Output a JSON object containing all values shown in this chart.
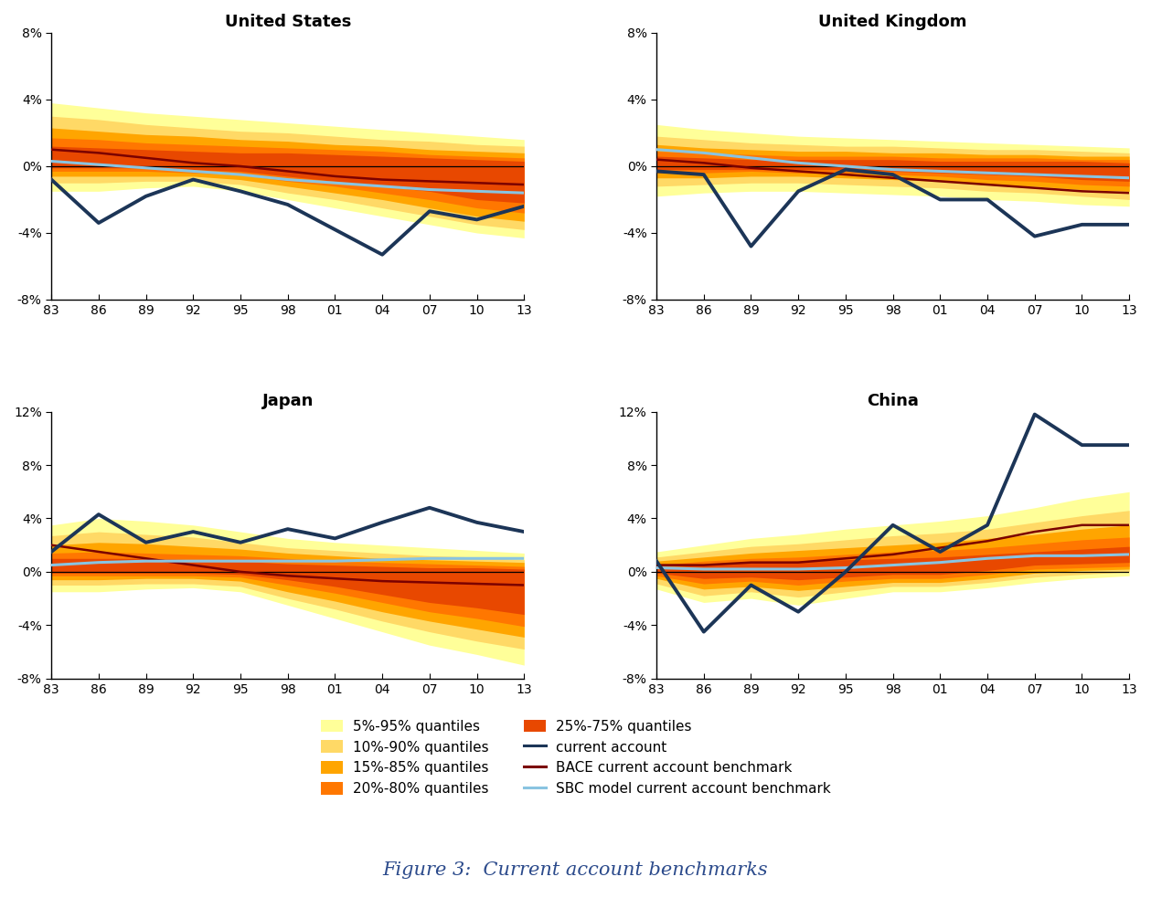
{
  "years": [
    1983,
    1986,
    1989,
    1992,
    1995,
    1998,
    2001,
    2004,
    2007,
    2010,
    2013
  ],
  "year_labels": [
    "83",
    "86",
    "89",
    "92",
    "95",
    "98",
    "01",
    "04",
    "07",
    "10",
    "13"
  ],
  "panels": {
    "United States": {
      "ylim": [
        -8,
        8
      ],
      "yticks": [
        -8,
        -4,
        0,
        4,
        8
      ],
      "ytick_labels": [
        "-8%",
        "-4%",
        "0%",
        "4%",
        "8%"
      ],
      "current_account": [
        -0.8,
        -3.4,
        -1.8,
        -0.8,
        -1.5,
        -2.3,
        -3.8,
        -5.3,
        -2.7,
        -3.2,
        -2.4
      ],
      "bace_benchmark": [
        1.0,
        0.8,
        0.5,
        0.2,
        0.0,
        -0.3,
        -0.6,
        -0.8,
        -0.9,
        -1.0,
        -1.1
      ],
      "sbc_benchmark": [
        0.3,
        0.1,
        -0.1,
        -0.3,
        -0.5,
        -0.8,
        -1.0,
        -1.2,
        -1.4,
        -1.5,
        -1.6
      ],
      "q5_95_upper": [
        3.8,
        3.5,
        3.2,
        3.0,
        2.8,
        2.6,
        2.4,
        2.2,
        2.0,
        1.8,
        1.6
      ],
      "q5_95_lower": [
        -1.5,
        -1.5,
        -1.3,
        -1.2,
        -1.5,
        -2.0,
        -2.5,
        -3.0,
        -3.5,
        -4.0,
        -4.3
      ],
      "q10_90_upper": [
        3.0,
        2.8,
        2.5,
        2.3,
        2.1,
        2.0,
        1.8,
        1.6,
        1.5,
        1.3,
        1.2
      ],
      "q10_90_lower": [
        -1.0,
        -1.0,
        -0.9,
        -0.9,
        -1.1,
        -1.6,
        -2.0,
        -2.5,
        -3.0,
        -3.5,
        -3.8
      ],
      "q15_85_upper": [
        2.3,
        2.1,
        1.9,
        1.8,
        1.6,
        1.5,
        1.3,
        1.2,
        1.0,
        0.9,
        0.8
      ],
      "q15_85_lower": [
        -0.6,
        -0.6,
        -0.6,
        -0.6,
        -0.8,
        -1.2,
        -1.6,
        -2.0,
        -2.5,
        -3.0,
        -3.3
      ],
      "q20_80_upper": [
        1.7,
        1.6,
        1.4,
        1.3,
        1.2,
        1.1,
        1.0,
        0.9,
        0.7,
        0.6,
        0.5
      ],
      "q20_80_lower": [
        -0.3,
        -0.3,
        -0.3,
        -0.4,
        -0.5,
        -0.9,
        -1.2,
        -1.6,
        -2.0,
        -2.5,
        -2.8
      ],
      "q25_75_upper": [
        1.2,
        1.1,
        1.0,
        0.9,
        0.8,
        0.8,
        0.7,
        0.6,
        0.5,
        0.4,
        0.3
      ],
      "q25_75_lower": [
        -0.1,
        -0.1,
        -0.1,
        -0.2,
        -0.3,
        -0.6,
        -0.9,
        -1.2,
        -1.5,
        -2.0,
        -2.2
      ]
    },
    "United Kingdom": {
      "ylim": [
        -8,
        8
      ],
      "yticks": [
        -8,
        -4,
        0,
        4,
        8
      ],
      "ytick_labels": [
        "-8%",
        "-4%",
        "0%",
        "4%",
        "8%"
      ],
      "current_account": [
        -0.3,
        -0.5,
        -4.8,
        -1.5,
        -0.2,
        -0.5,
        -2.0,
        -2.0,
        -4.2,
        -3.5,
        -3.5
      ],
      "bace_benchmark": [
        0.4,
        0.2,
        -0.1,
        -0.3,
        -0.5,
        -0.7,
        -0.9,
        -1.1,
        -1.3,
        -1.5,
        -1.6
      ],
      "sbc_benchmark": [
        1.0,
        0.8,
        0.5,
        0.2,
        0.0,
        -0.2,
        -0.3,
        -0.4,
        -0.5,
        -0.6,
        -0.7
      ],
      "q5_95_upper": [
        2.5,
        2.2,
        2.0,
        1.8,
        1.7,
        1.6,
        1.5,
        1.4,
        1.3,
        1.2,
        1.1
      ],
      "q5_95_lower": [
        -1.8,
        -1.6,
        -1.5,
        -1.5,
        -1.6,
        -1.7,
        -1.8,
        -2.0,
        -2.1,
        -2.3,
        -2.4
      ],
      "q10_90_upper": [
        1.8,
        1.6,
        1.4,
        1.3,
        1.2,
        1.2,
        1.1,
        1.0,
        1.0,
        0.9,
        0.8
      ],
      "q10_90_lower": [
        -1.2,
        -1.1,
        -1.0,
        -1.0,
        -1.1,
        -1.2,
        -1.3,
        -1.5,
        -1.6,
        -1.8,
        -2.0
      ],
      "q15_85_upper": [
        1.3,
        1.1,
        1.0,
        0.9,
        0.9,
        0.8,
        0.8,
        0.7,
        0.7,
        0.6,
        0.6
      ],
      "q15_85_lower": [
        -0.7,
        -0.7,
        -0.6,
        -0.6,
        -0.7,
        -0.8,
        -0.9,
        -1.1,
        -1.2,
        -1.4,
        -1.5
      ],
      "q20_80_upper": [
        0.9,
        0.8,
        0.7,
        0.6,
        0.6,
        0.6,
        0.5,
        0.5,
        0.5,
        0.4,
        0.4
      ],
      "q20_80_lower": [
        -0.4,
        -0.4,
        -0.3,
        -0.4,
        -0.4,
        -0.5,
        -0.6,
        -0.8,
        -0.9,
        -1.1,
        -1.2
      ],
      "q25_75_upper": [
        0.6,
        0.5,
        0.4,
        0.4,
        0.4,
        0.4,
        0.3,
        0.3,
        0.3,
        0.3,
        0.2
      ],
      "q25_75_lower": [
        -0.2,
        -0.2,
        -0.2,
        -0.2,
        -0.2,
        -0.3,
        -0.4,
        -0.5,
        -0.6,
        -0.8,
        -0.9
      ]
    },
    "Japan": {
      "ylim": [
        -8,
        12
      ],
      "yticks": [
        -8,
        -4,
        0,
        4,
        8,
        12
      ],
      "ytick_labels": [
        "-8%",
        "-4%",
        "0%",
        "4%",
        "8%",
        "12%"
      ],
      "current_account": [
        1.5,
        4.3,
        2.2,
        3.0,
        2.2,
        3.2,
        2.5,
        3.7,
        4.8,
        3.7,
        3.0
      ],
      "bace_benchmark": [
        2.0,
        1.5,
        1.0,
        0.5,
        0.0,
        -0.3,
        -0.5,
        -0.7,
        -0.8,
        -0.9,
        -1.0
      ],
      "sbc_benchmark": [
        0.5,
        0.7,
        0.8,
        0.8,
        0.8,
        0.8,
        0.8,
        0.9,
        1.0,
        1.0,
        1.0
      ],
      "q5_95_upper": [
        3.5,
        4.0,
        3.8,
        3.5,
        3.0,
        2.5,
        2.2,
        2.0,
        1.8,
        1.6,
        1.4
      ],
      "q5_95_lower": [
        -1.5,
        -1.5,
        -1.3,
        -1.2,
        -1.5,
        -2.5,
        -3.5,
        -4.5,
        -5.5,
        -6.2,
        -7.0
      ],
      "q10_90_upper": [
        2.7,
        3.0,
        2.8,
        2.6,
        2.2,
        1.8,
        1.6,
        1.4,
        1.2,
        1.1,
        0.9
      ],
      "q10_90_lower": [
        -1.0,
        -1.0,
        -0.9,
        -0.9,
        -1.1,
        -2.0,
        -2.8,
        -3.7,
        -4.5,
        -5.2,
        -5.8
      ],
      "q15_85_upper": [
        2.0,
        2.2,
        2.1,
        1.9,
        1.7,
        1.4,
        1.2,
        1.0,
        0.9,
        0.8,
        0.7
      ],
      "q15_85_lower": [
        -0.6,
        -0.6,
        -0.5,
        -0.5,
        -0.7,
        -1.5,
        -2.2,
        -3.0,
        -3.7,
        -4.3,
        -4.9
      ],
      "q20_80_upper": [
        1.4,
        1.5,
        1.4,
        1.3,
        1.2,
        1.0,
        0.8,
        0.7,
        0.6,
        0.5,
        0.4
      ],
      "q20_80_lower": [
        -0.3,
        -0.3,
        -0.3,
        -0.3,
        -0.4,
        -1.0,
        -1.6,
        -2.3,
        -3.0,
        -3.5,
        -4.1
      ],
      "q25_75_upper": [
        1.0,
        1.0,
        1.0,
        0.9,
        0.8,
        0.6,
        0.5,
        0.4,
        0.3,
        0.3,
        0.2
      ],
      "q25_75_lower": [
        -0.1,
        -0.1,
        -0.1,
        -0.1,
        -0.2,
        -0.6,
        -1.1,
        -1.7,
        -2.3,
        -2.7,
        -3.2
      ]
    },
    "China": {
      "ylim": [
        -8,
        12
      ],
      "yticks": [
        -8,
        -4,
        0,
        4,
        8,
        12
      ],
      "ytick_labels": [
        "-8%",
        "-4%",
        "0%",
        "4%",
        "8%",
        "12%"
      ],
      "current_account": [
        0.8,
        -4.5,
        -1.0,
        -3.0,
        0.0,
        3.5,
        1.5,
        3.5,
        11.8,
        9.5,
        9.5
      ],
      "bace_benchmark": [
        0.5,
        0.5,
        0.7,
        0.7,
        1.0,
        1.3,
        1.8,
        2.3,
        3.0,
        3.5,
        3.5
      ],
      "sbc_benchmark": [
        0.3,
        0.2,
        0.2,
        0.2,
        0.3,
        0.5,
        0.7,
        1.0,
        1.2,
        1.2,
        1.3
      ],
      "q5_95_upper": [
        1.5,
        2.0,
        2.5,
        2.8,
        3.2,
        3.5,
        3.8,
        4.2,
        4.8,
        5.5,
        6.0
      ],
      "q5_95_lower": [
        -1.3,
        -2.3,
        -2.0,
        -2.5,
        -2.0,
        -1.5,
        -1.5,
        -1.2,
        -0.8,
        -0.5,
        -0.3
      ],
      "q10_90_upper": [
        1.1,
        1.5,
        1.9,
        2.1,
        2.4,
        2.7,
        2.9,
        3.2,
        3.7,
        4.2,
        4.6
      ],
      "q10_90_lower": [
        -0.9,
        -1.8,
        -1.5,
        -1.9,
        -1.5,
        -1.1,
        -1.1,
        -0.8,
        -0.4,
        -0.2,
        0.0
      ],
      "q15_85_upper": [
        0.8,
        1.1,
        1.4,
        1.6,
        1.8,
        2.0,
        2.2,
        2.5,
        2.8,
        3.2,
        3.5
      ],
      "q15_85_lower": [
        -0.5,
        -1.3,
        -1.1,
        -1.4,
        -1.1,
        -0.8,
        -0.8,
        -0.5,
        -0.1,
        0.1,
        0.2
      ],
      "q20_80_upper": [
        0.5,
        0.8,
        1.0,
        1.1,
        1.3,
        1.5,
        1.6,
        1.8,
        2.1,
        2.4,
        2.6
      ],
      "q20_80_lower": [
        -0.3,
        -0.9,
        -0.7,
        -1.0,
        -0.7,
        -0.5,
        -0.5,
        -0.2,
        0.2,
        0.3,
        0.4
      ],
      "q25_75_upper": [
        0.3,
        0.5,
        0.7,
        0.8,
        0.9,
        1.0,
        1.1,
        1.3,
        1.5,
        1.7,
        1.9
      ],
      "q25_75_lower": [
        -0.1,
        -0.5,
        -0.4,
        -0.6,
        -0.4,
        -0.2,
        -0.2,
        0.1,
        0.5,
        0.6,
        0.7
      ]
    }
  },
  "colors": {
    "q5_95": "#FFFF99",
    "q10_90": "#FFD966",
    "q15_85": "#FFA500",
    "q20_80": "#FF7700",
    "q25_75": "#E84800",
    "current_account": "#1C3557",
    "bace_benchmark": "#7B0000",
    "sbc_benchmark": "#89C4E1"
  },
  "legend_left": [
    {
      "label": "5%-95% quantiles",
      "type": "patch",
      "color": "#FFFF99"
    },
    {
      "label": "15%-85% quantiles",
      "type": "patch",
      "color": "#FFA500"
    },
    {
      "label": "25%-75% quantiles",
      "type": "patch",
      "color": "#E84800"
    },
    {
      "label": "BACE current account benchmark",
      "type": "line",
      "color": "#7B0000"
    }
  ],
  "legend_right": [
    {
      "label": "10%-90% quantiles",
      "type": "patch",
      "color": "#FFD966"
    },
    {
      "label": "20%-80% quantiles",
      "type": "patch",
      "color": "#FF7700"
    },
    {
      "label": "current account",
      "type": "line",
      "color": "#1C3557"
    },
    {
      "label": "SBC model current account benchmark",
      "type": "line",
      "color": "#89C4E1"
    }
  ],
  "figure_title": "Figure 3:  Current account benchmarks"
}
